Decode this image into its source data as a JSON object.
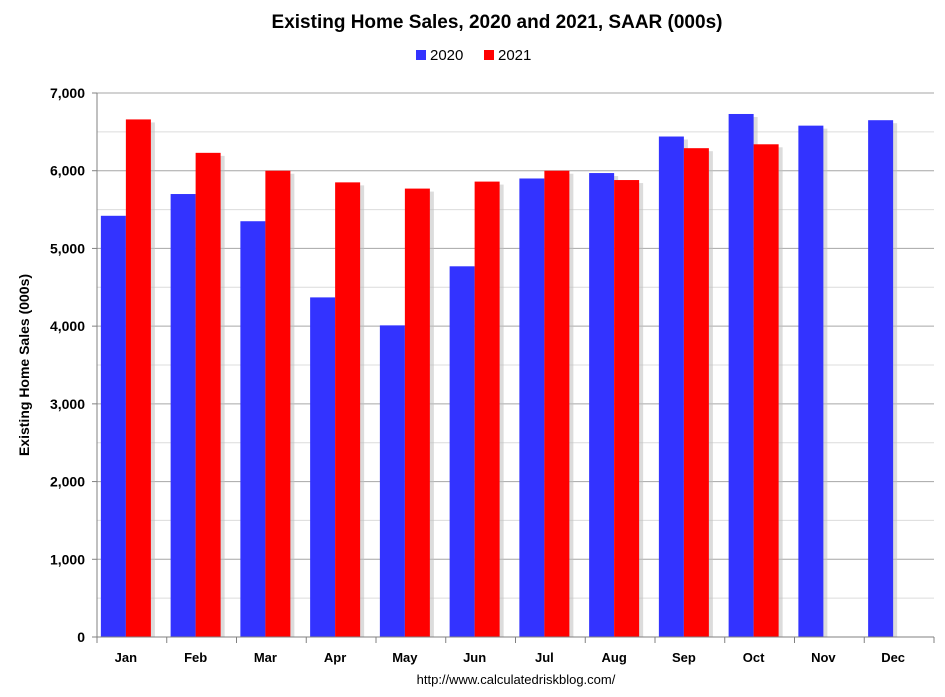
{
  "chart_data": {
    "type": "bar",
    "title": "Existing Home Sales,  2020 and 2021, SAAR (000s)",
    "ylabel": "Existing Home Sales (000s)",
    "xlabel": "",
    "source": "http://www.calculatedriskblog.com/",
    "categories": [
      "Jan",
      "Feb",
      "Mar",
      "Apr",
      "May",
      "Jun",
      "Jul",
      "Aug",
      "Sep",
      "Oct",
      "Nov",
      "Dec"
    ],
    "series": [
      {
        "name": "2020",
        "color": "#3333ff",
        "values": [
          5420,
          5700,
          5350,
          4370,
          4010,
          4770,
          5900,
          5970,
          6440,
          6730,
          6580,
          6650
        ]
      },
      {
        "name": "2021",
        "color": "#ff0000",
        "values": [
          6660,
          6230,
          6000,
          5850,
          5770,
          5860,
          6000,
          5880,
          6290,
          6340,
          null,
          null
        ]
      }
    ],
    "ylim": [
      0,
      7000
    ],
    "yticks": [
      0,
      1000,
      2000,
      3000,
      4000,
      5000,
      6000,
      7000
    ],
    "ytick_labels": [
      "0",
      "1,000",
      "2,000",
      "3,000",
      "4,000",
      "5,000",
      "6,000",
      "7,000"
    ],
    "grid": true,
    "legend_position": "top-center"
  }
}
